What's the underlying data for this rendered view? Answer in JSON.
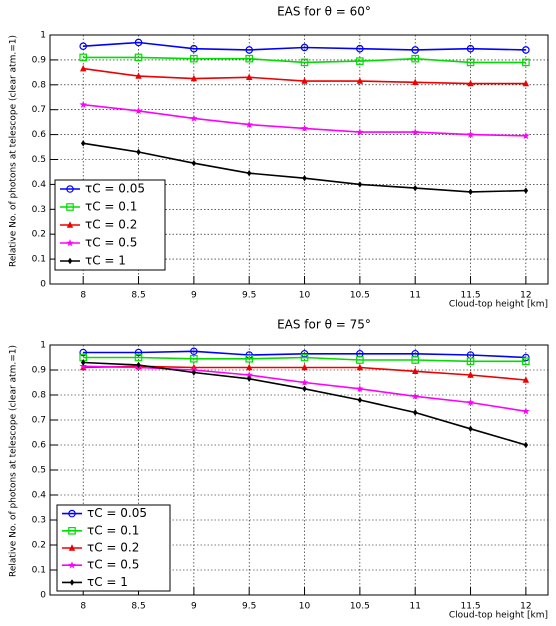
{
  "chart_data": [
    {
      "type": "line",
      "title": "EAS for θ = 60°",
      "xlabel": "Cloud-top height [km]",
      "ylabel": "Relative No. of photons at telescope (clear atm.=1)",
      "x": [
        8,
        8.5,
        9,
        9.5,
        10,
        10.5,
        11,
        11.5,
        12
      ],
      "xlim": [
        7.7,
        12.2
      ],
      "xticks": [
        8,
        8.5,
        9,
        9.5,
        10,
        10.5,
        11,
        11.5,
        12
      ],
      "ylim": [
        0,
        1
      ],
      "yticks": [
        0,
        0.1,
        0.2,
        0.3,
        0.4,
        0.5,
        0.6,
        0.7,
        0.8,
        0.9,
        1
      ],
      "grid": true,
      "legend": "lower left",
      "series": [
        {
          "name": "τC = 0.05",
          "color": "#0000ff",
          "marker": "circle",
          "values": [
            0.955,
            0.97,
            0.945,
            0.94,
            0.95,
            0.945,
            0.94,
            0.945,
            0.94
          ]
        },
        {
          "name": "τC = 0.1",
          "color": "#00dd00",
          "marker": "square",
          "values": [
            0.91,
            0.91,
            0.905,
            0.905,
            0.89,
            0.895,
            0.905,
            0.89,
            0.89
          ]
        },
        {
          "name": "τC = 0.2",
          "color": "#ee0000",
          "marker": "triangle",
          "values": [
            0.865,
            0.835,
            0.825,
            0.83,
            0.815,
            0.815,
            0.81,
            0.805,
            0.805
          ]
        },
        {
          "name": "τC = 0.5",
          "color": "#ff00ff",
          "marker": "star",
          "values": [
            0.72,
            0.695,
            0.665,
            0.64,
            0.625,
            0.61,
            0.61,
            0.6,
            0.595
          ]
        },
        {
          "name": "τC = 1",
          "color": "#000000",
          "marker": "diamond",
          "values": [
            0.565,
            0.53,
            0.485,
            0.445,
            0.425,
            0.4,
            0.385,
            0.37,
            0.375
          ]
        }
      ]
    },
    {
      "type": "line",
      "title": "EAS for θ = 75°",
      "xlabel": "Cloud-top height [km]",
      "ylabel": "Relative No. of photons at telescope (clear atm.=1)",
      "x": [
        8,
        8.5,
        9,
        9.5,
        10,
        10.5,
        11,
        11.5,
        12
      ],
      "xlim": [
        7.7,
        12.2
      ],
      "xticks": [
        8,
        8.5,
        9,
        9.5,
        10,
        10.5,
        11,
        11.5,
        12
      ],
      "ylim": [
        0,
        1
      ],
      "yticks": [
        0,
        0.1,
        0.2,
        0.3,
        0.4,
        0.5,
        0.6,
        0.7,
        0.8,
        0.9,
        1
      ],
      "grid": true,
      "legend": "lower left",
      "series": [
        {
          "name": "τC = 0.05",
          "color": "#0000ff",
          "marker": "circle",
          "values": [
            0.97,
            0.97,
            0.975,
            0.96,
            0.965,
            0.965,
            0.965,
            0.96,
            0.95
          ]
        },
        {
          "name": "τC = 0.1",
          "color": "#00dd00",
          "marker": "square",
          "values": [
            0.95,
            0.95,
            0.945,
            0.945,
            0.95,
            0.94,
            0.94,
            0.935,
            0.935
          ]
        },
        {
          "name": "τC = 0.2",
          "color": "#ee0000",
          "marker": "triangle",
          "values": [
            0.91,
            0.915,
            0.91,
            0.91,
            0.91,
            0.91,
            0.895,
            0.88,
            0.86
          ]
        },
        {
          "name": "τC = 0.5",
          "color": "#ff00ff",
          "marker": "star",
          "values": [
            0.915,
            0.91,
            0.9,
            0.88,
            0.85,
            0.825,
            0.795,
            0.77,
            0.735
          ]
        },
        {
          "name": "τC = 1",
          "color": "#000000",
          "marker": "diamond",
          "values": [
            0.93,
            0.92,
            0.89,
            0.865,
            0.825,
            0.78,
            0.73,
            0.665,
            0.6
          ]
        }
      ]
    }
  ]
}
